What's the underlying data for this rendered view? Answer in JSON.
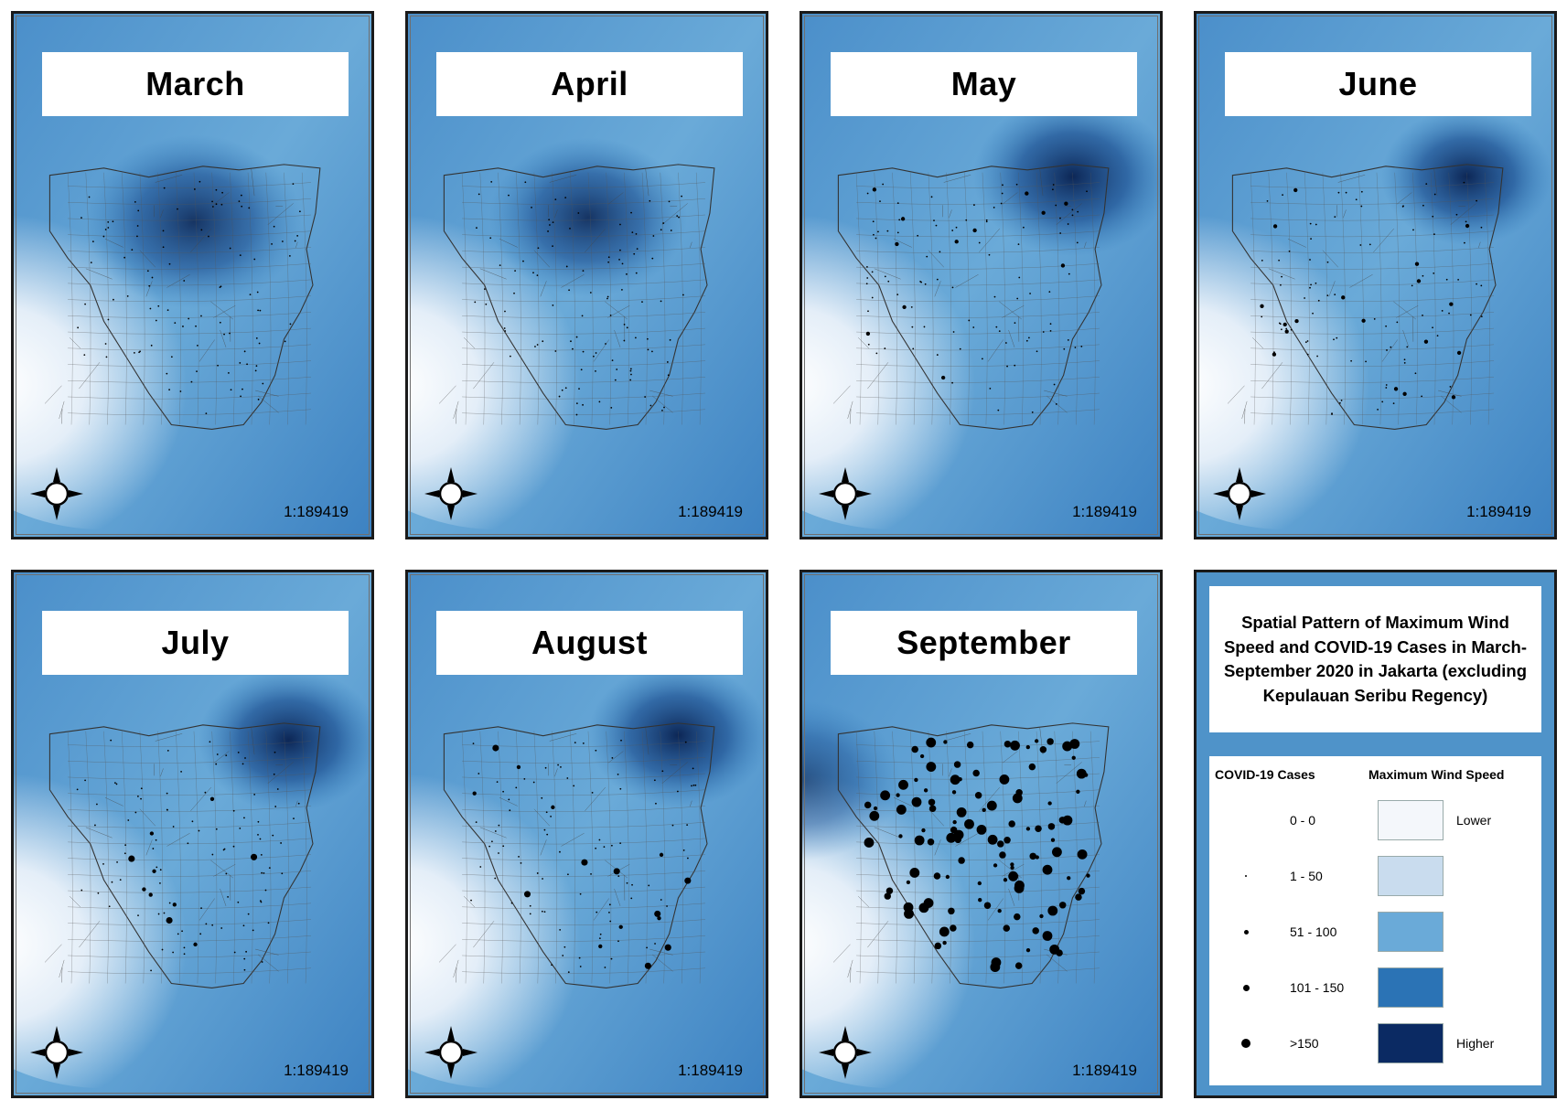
{
  "panels": [
    {
      "month": "March",
      "scale": "1:189419",
      "cases_level": 1
    },
    {
      "month": "April",
      "scale": "1:189419",
      "cases_level": 1
    },
    {
      "month": "May",
      "scale": "1:189419",
      "cases_level": 2
    },
    {
      "month": "June",
      "scale": "1:189419",
      "cases_level": 2
    },
    {
      "month": "July",
      "scale": "1:189419",
      "cases_level": 3
    },
    {
      "month": "August",
      "scale": "1:189419",
      "cases_level": 3
    },
    {
      "month": "September",
      "scale": "1:189419",
      "cases_level": 5
    }
  ],
  "legend": {
    "title": "Spatial Pattern of Maximum Wind Speed and COVID-19 Cases in March-September 2020 in Jakarta (excluding Kepulauan Seribu Regency)",
    "cases_header": "COVID-19 Cases",
    "wind_header": "Maximum Wind Speed",
    "case_classes": [
      "0 - 0",
      "1 - 50",
      "51 - 100",
      "101 - 150",
      ">150"
    ],
    "wind_classes": [
      {
        "label": "Lower",
        "color": "#f4f7fb"
      },
      {
        "label": "",
        "color": "#c9dcee"
      },
      {
        "label": "",
        "color": "#6aaad8"
      },
      {
        "label": "",
        "color": "#2b73b5"
      },
      {
        "label": "Higher",
        "color": "#0b2a63"
      }
    ]
  },
  "compass_icon": "north-arrow-compass-icon"
}
